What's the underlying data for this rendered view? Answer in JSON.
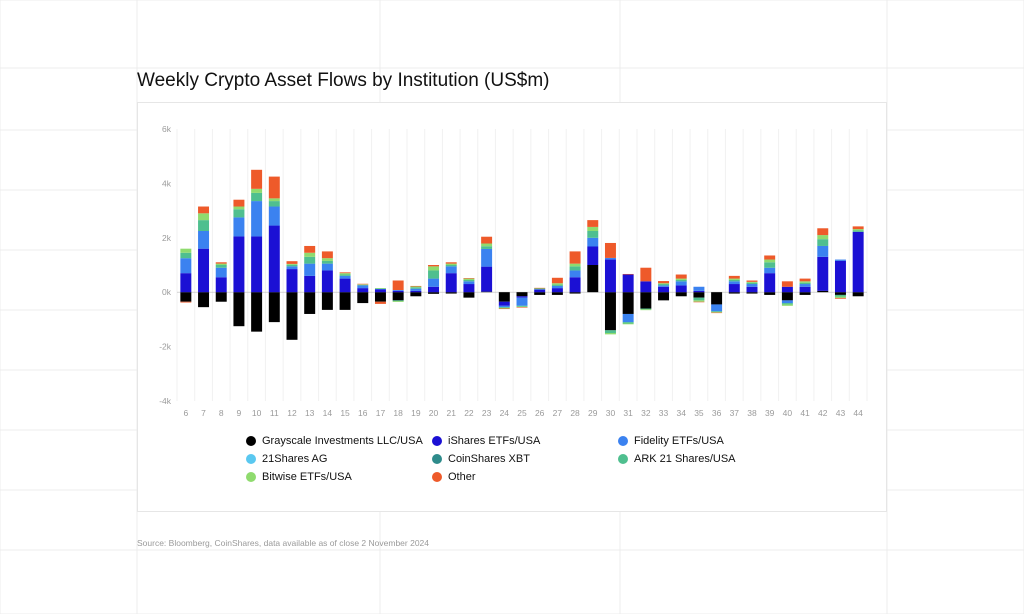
{
  "header": {
    "title": "Weekly Crypto Asset Flows by Institution (US$m)"
  },
  "footer": {
    "source": "Source: Bloomberg, CoinShares, data available as of close 2 November 2024"
  },
  "colors": {
    "background_grid": "#ececec",
    "axis_text": "#9a9a9a",
    "zero_line": "#bdbdbd"
  },
  "chart_data": {
    "type": "bar",
    "stacked": true,
    "title": "Weekly Crypto Asset Flows by Institution (US$m)",
    "xlabel": "",
    "ylabel": "",
    "ylim": [
      -4000,
      6000
    ],
    "yticks": [
      -4000,
      -2000,
      0,
      2000,
      4000,
      6000
    ],
    "ytick_labels": [
      "-4k",
      "-2k",
      "0k",
      "2k",
      "4k",
      "6k"
    ],
    "grid": "vertical",
    "legend_position": "bottom",
    "categories": [
      "6",
      "7",
      "8",
      "9",
      "10",
      "11",
      "12",
      "13",
      "14",
      "15",
      "16",
      "17",
      "18",
      "19",
      "20",
      "21",
      "22",
      "23",
      "24",
      "25",
      "26",
      "27",
      "28",
      "29",
      "30",
      "31",
      "32",
      "33",
      "34",
      "35",
      "36",
      "37",
      "38",
      "39",
      "40",
      "41",
      "42",
      "43",
      "44"
    ],
    "series": [
      {
        "name": "Grayscale Investments LLC/USA",
        "color": "#000000",
        "values": [
          -350,
          -550,
          -350,
          -1250,
          -1450,
          -1100,
          -1750,
          -800,
          -650,
          -650,
          -400,
          -350,
          -300,
          -150,
          -60,
          -50,
          -200,
          20,
          -350,
          -150,
          -100,
          -100,
          -50,
          1000,
          -1400,
          -800,
          -600,
          -300,
          -150,
          -200,
          -450,
          -50,
          -50,
          -100,
          -300,
          -100,
          50,
          -100,
          -150
        ]
      },
      {
        "name": "iShares ETFs/USA",
        "color": "#1b10d4",
        "values": [
          700,
          1600,
          550,
          2050,
          2050,
          2450,
          850,
          600,
          800,
          500,
          150,
          100,
          50,
          50,
          200,
          700,
          300,
          920,
          -150,
          -50,
          100,
          150,
          550,
          680,
          1200,
          650,
          400,
          200,
          250,
          50,
          0,
          300,
          200,
          700,
          200,
          200,
          1250,
          1150,
          2220
        ]
      },
      {
        "name": "Fidelity ETFs/USA",
        "color": "#3b82f0",
        "values": [
          550,
          650,
          350,
          700,
          1300,
          700,
          100,
          450,
          250,
          100,
          100,
          20,
          30,
          80,
          300,
          250,
          100,
          650,
          -50,
          -300,
          10,
          80,
          250,
          320,
          60,
          -300,
          0,
          50,
          150,
          150,
          -250,
          100,
          100,
          200,
          -100,
          100,
          400,
          50,
          0
        ]
      },
      {
        "name": "21Shares AG",
        "color": "#5ac8f0",
        "values": [
          0,
          0,
          0,
          0,
          0,
          0,
          0,
          0,
          0,
          0,
          0,
          0,
          0,
          0,
          0,
          0,
          0,
          0,
          0,
          0,
          0,
          0,
          0,
          0,
          0,
          0,
          0,
          0,
          0,
          0,
          0,
          0,
          0,
          0,
          0,
          0,
          0,
          0,
          0
        ]
      },
      {
        "name": "CoinShares XBT",
        "color": "#2e8b8b",
        "values": [
          0,
          0,
          0,
          0,
          0,
          0,
          0,
          0,
          0,
          0,
          0,
          0,
          0,
          0,
          0,
          0,
          0,
          0,
          0,
          0,
          0,
          0,
          0,
          0,
          0,
          0,
          0,
          0,
          0,
          0,
          0,
          0,
          0,
          0,
          0,
          0,
          0,
          0,
          0
        ]
      },
      {
        "name": "ARK 21 Shares/USA",
        "color": "#4fbf8f",
        "values": [
          200,
          400,
          100,
          300,
          300,
          200,
          60,
          250,
          100,
          50,
          20,
          20,
          -30,
          50,
          300,
          50,
          50,
          100,
          -30,
          -30,
          30,
          50,
          150,
          250,
          -100,
          -50,
          -30,
          50,
          50,
          -100,
          -30,
          50,
          50,
          200,
          -50,
          50,
          250,
          -60,
          50
        ]
      },
      {
        "name": "Bitwise ETFs/USA",
        "color": "#8fdb6e",
        "values": [
          150,
          250,
          50,
          100,
          150,
          100,
          30,
          150,
          100,
          50,
          20,
          10,
          -30,
          30,
          150,
          50,
          50,
          100,
          -20,
          -20,
          10,
          50,
          100,
          150,
          -50,
          -30,
          -30,
          30,
          50,
          -50,
          -20,
          50,
          30,
          100,
          -50,
          50,
          150,
          -50,
          50
        ]
      },
      {
        "name": "Other",
        "color": "#ee5a2a",
        "values": [
          -30,
          250,
          50,
          250,
          700,
          800,
          100,
          250,
          250,
          30,
          20,
          -80,
          350,
          20,
          50,
          50,
          20,
          250,
          -20,
          -20,
          10,
          200,
          450,
          250,
          550,
          20,
          500,
          80,
          150,
          -20,
          -10,
          100,
          50,
          150,
          200,
          100,
          250,
          -30,
          100
        ]
      }
    ]
  },
  "legend": {
    "items": [
      "Grayscale Investments LLC/USA",
      "iShares ETFs/USA",
      "Fidelity ETFs/USA",
      "21Shares AG",
      "CoinShares XBT",
      "ARK 21 Shares/USA",
      "Bitwise ETFs/USA",
      "Other"
    ]
  }
}
